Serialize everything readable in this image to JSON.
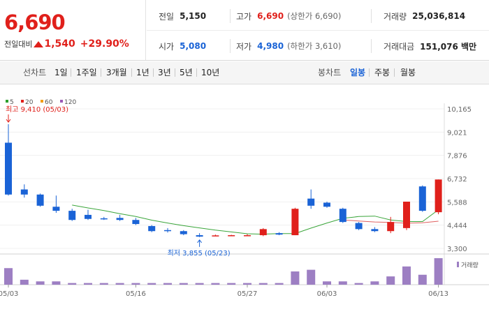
{
  "summary": {
    "price": "6,690",
    "change_label": "전일대비",
    "change_abs": "1,540",
    "change_pct": "+29.90%",
    "prev_close_label": "전일",
    "prev_close": "5,150",
    "high_label": "고가",
    "high": "6,690",
    "high_note": "(상한가 6,690)",
    "volume_label": "거래량",
    "volume": "25,036,814",
    "open_label": "시가",
    "open": "5,080",
    "low_label": "저가",
    "low": "4,980",
    "low_note": "(하한가 3,610)",
    "amount_label": "거래대금",
    "amount": "151,076 백만",
    "colors": {
      "up": "#e0201b",
      "down": "#1a63d6"
    }
  },
  "controls": {
    "line_chart_label": "선차트",
    "periods": [
      "1일",
      "1주일",
      "3개월",
      "1년",
      "3년",
      "5년",
      "10년"
    ],
    "candle_chart_label": "봉차트",
    "candle_types": [
      "일봉",
      "주봉",
      "월봉"
    ],
    "active_candle_type": "일봉"
  },
  "chart_data": {
    "type": "candlestick",
    "legend": [
      {
        "name": "5",
        "color": "#2ca02c"
      },
      {
        "name": "20",
        "color": "#e0201b"
      },
      {
        "name": "60",
        "color": "#f39c12"
      },
      {
        "name": "120",
        "color": "#9b59b6"
      }
    ],
    "y_ticks": [
      10165,
      9021,
      7876,
      6732,
      5588,
      4444,
      3300
    ],
    "y_tick_labels": [
      "10,165",
      "9,021",
      "7,876",
      "6,732",
      "5,588",
      "4,444",
      "3,300"
    ],
    "ylim": [
      3300,
      10165
    ],
    "x_tick_labels": [
      {
        "i": 0,
        "label": "05/03"
      },
      {
        "i": 8,
        "label": "05/16"
      },
      {
        "i": 15,
        "label": "05/27"
      },
      {
        "i": 20,
        "label": "06/03"
      },
      {
        "i": 27,
        "label": "06/13"
      }
    ],
    "candles": [
      {
        "o": 8500,
        "h": 9410,
        "l": 5900,
        "c": 5950
      },
      {
        "o": 6200,
        "h": 6450,
        "l": 5800,
        "c": 5950
      },
      {
        "o": 5950,
        "h": 6000,
        "l": 5350,
        "c": 5400
      },
      {
        "o": 5350,
        "h": 5900,
        "l": 5050,
        "c": 5150
      },
      {
        "o": 5150,
        "h": 5250,
        "l": 4650,
        "c": 4700
      },
      {
        "o": 4950,
        "h": 5200,
        "l": 4700,
        "c": 4750
      },
      {
        "o": 4780,
        "h": 4850,
        "l": 4700,
        "c": 4750
      },
      {
        "o": 4800,
        "h": 4950,
        "l": 4650,
        "c": 4700
      },
      {
        "o": 4700,
        "h": 4800,
        "l": 4450,
        "c": 4500
      },
      {
        "o": 4400,
        "h": 4450,
        "l": 4100,
        "c": 4150
      },
      {
        "o": 4200,
        "h": 4300,
        "l": 4080,
        "c": 4150
      },
      {
        "o": 4150,
        "h": 4200,
        "l": 3950,
        "c": 4000
      },
      {
        "o": 3950,
        "h": 4050,
        "l": 3855,
        "c": 3880
      },
      {
        "o": 3920,
        "h": 3980,
        "l": 3900,
        "c": 3940
      },
      {
        "o": 3930,
        "h": 3970,
        "l": 3900,
        "c": 3950
      },
      {
        "o": 3920,
        "h": 4000,
        "l": 3900,
        "c": 3950
      },
      {
        "o": 3950,
        "h": 4300,
        "l": 3900,
        "c": 4250
      },
      {
        "o": 4050,
        "h": 4100,
        "l": 3950,
        "c": 3980
      },
      {
        "o": 3950,
        "h": 5300,
        "l": 3950,
        "c": 5250
      },
      {
        "o": 5750,
        "h": 6200,
        "l": 5250,
        "c": 5400
      },
      {
        "o": 5550,
        "h": 5600,
        "l": 5300,
        "c": 5350
      },
      {
        "o": 5250,
        "h": 5300,
        "l": 4550,
        "c": 4600
      },
      {
        "o": 4550,
        "h": 4600,
        "l": 4200,
        "c": 4250
      },
      {
        "o": 4250,
        "h": 4350,
        "l": 4100,
        "c": 4150
      },
      {
        "o": 4150,
        "h": 4850,
        "l": 4050,
        "c": 4600
      },
      {
        "o": 4300,
        "h": 5600,
        "l": 4200,
        "c": 5600
      },
      {
        "o": 6350,
        "h": 6400,
        "l": 5100,
        "c": 5150
      },
      {
        "o": 5080,
        "h": 6690,
        "l": 4980,
        "c": 6690
      }
    ],
    "ma5": [
      null,
      null,
      null,
      null,
      5430,
      5290,
      5160,
      5010,
      4870,
      4690,
      4550,
      4420,
      4310,
      4200,
      4110,
      4020,
      4000,
      4030,
      4030,
      4300,
      4550,
      4780,
      4870,
      4890,
      4700,
      4620,
      4620,
      5200
    ],
    "ma20": [
      null,
      null,
      null,
      null,
      null,
      null,
      null,
      null,
      null,
      null,
      null,
      null,
      null,
      null,
      null,
      null,
      null,
      null,
      null,
      null,
      null,
      4700,
      4650,
      4600,
      4580,
      4540,
      4560,
      4640
    ],
    "volume": [
      10,
      3,
      2,
      2,
      1,
      1,
      1,
      1,
      1,
      1,
      1,
      1,
      1,
      1,
      1,
      1,
      1,
      1,
      8,
      9,
      2,
      2,
      1,
      2,
      5,
      11,
      6,
      16
    ],
    "volume_label": "거래량",
    "annotations": {
      "high": {
        "text": "최고 9,410 (05/03)",
        "i": 0,
        "value": 9410
      },
      "low": {
        "text": "최저 3,855 (05/23)",
        "i": 12,
        "value": 3855
      }
    }
  }
}
